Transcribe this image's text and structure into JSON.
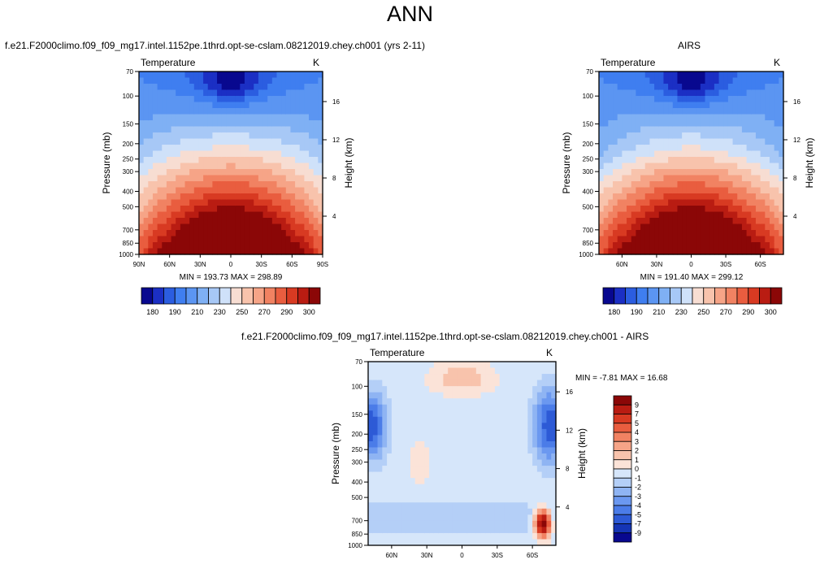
{
  "page": {
    "title": "ANN"
  },
  "panels": [
    {
      "id": "model",
      "case_title": "f.e21.F2000climo.f09_f09_mg17.intel.1152pe.1thrd.opt-se-cslam.08212019.chey.ch001 (yrs 2-11)",
      "variable": "Temperature",
      "units": "K",
      "minmax": "MIN = 193.73  MAX = 298.89",
      "ylabel_left": "Pressure (mb)",
      "ylabel_right": "Height (km)",
      "x_ticks": [
        "90N",
        "60N",
        "30N",
        "0",
        "30S",
        "60S",
        "90S"
      ],
      "pressure_ticks": [
        "70",
        "100",
        "150",
        "200",
        "250",
        "300",
        "400",
        "500",
        "700",
        "850",
        "1000"
      ],
      "height_ticks": [
        "16",
        "12",
        "8",
        "4"
      ]
    },
    {
      "id": "obs",
      "case_title": "AIRS",
      "variable": "Temperature",
      "units": "K",
      "minmax": "MIN = 191.40  MAX = 299.12",
      "ylabel_left": "Pressure (mb)",
      "ylabel_right": "Height (km)",
      "x_ticks": [
        "60N",
        "30N",
        "0",
        "30S",
        "60S"
      ],
      "pressure_ticks": [
        "70",
        "100",
        "150",
        "200",
        "250",
        "300",
        "400",
        "500",
        "700",
        "850",
        "1000"
      ],
      "height_ticks": [
        "16",
        "12",
        "8",
        "4"
      ]
    },
    {
      "id": "diff",
      "case_title": "f.e21.F2000climo.f09_f09_mg17.intel.1152pe.1thrd.opt-se-cslam.08212019.chey.ch001 - AIRS",
      "variable": "Temperature",
      "units": "K",
      "minmax": "MIN =  -7.81  MAX =  16.68",
      "ylabel_left": "Pressure (mb)",
      "ylabel_right": "Height (km)",
      "x_ticks": [
        "60N",
        "30N",
        "0",
        "30S",
        "60S"
      ],
      "pressure_ticks": [
        "70",
        "100",
        "150",
        "200",
        "250",
        "300",
        "400",
        "500",
        "700",
        "850",
        "1000"
      ],
      "height_ticks": [
        "16",
        "12",
        "8",
        "4"
      ]
    }
  ],
  "colorbar_abs": {
    "labels": [
      "180",
      "190",
      "210",
      "230",
      "250",
      "270",
      "290",
      "300"
    ],
    "colors": [
      "#08088f",
      "#1b2fc4",
      "#2b5de0",
      "#3f7ef0",
      "#5b95f2",
      "#7fb0f4",
      "#a7c8f6",
      "#cfe1f9",
      "#f7ddd2",
      "#f8c3ac",
      "#f6a487",
      "#f18262",
      "#e95d3f",
      "#d83a22",
      "#b91c12",
      "#8b0707"
    ]
  },
  "colorbar_diff": {
    "labels": [
      "9",
      "7",
      "5",
      "4",
      "3",
      "2",
      "1",
      "0",
      "-1",
      "-2",
      "-3",
      "-4",
      "-5",
      "-7",
      "-9"
    ],
    "colors": [
      "#8b0707",
      "#b91c12",
      "#d83a22",
      "#e95d3f",
      "#f18262",
      "#f6a487",
      "#f8c3ac",
      "#fbe3d8",
      "#d6e6fa",
      "#b4cff7",
      "#8fb4f3",
      "#6b98f0",
      "#4b7ce8",
      "#2d5ad6",
      "#1535b5",
      "#08088f"
    ]
  },
  "chart_data": [
    {
      "type": "heatmap",
      "title": "Temperature",
      "xlabel": "",
      "ylabel": "Pressure (mb)",
      "x": [
        "90N",
        "60N",
        "30N",
        "0",
        "30S",
        "60S",
        "90S"
      ],
      "y": [
        70,
        100,
        150,
        200,
        250,
        300,
        400,
        500,
        700,
        850,
        1000
      ],
      "min": 193.73,
      "max": 298.89,
      "units": "K",
      "zonal_mean_approx": [
        [
          210,
          208,
          205,
          195,
          205,
          208,
          210
        ],
        [
          212,
          210,
          206,
          196,
          206,
          210,
          210
        ],
        [
          212,
          212,
          208,
          202,
          208,
          212,
          210
        ],
        [
          215,
          214,
          212,
          210,
          212,
          214,
          212
        ],
        [
          220,
          222,
          224,
          224,
          224,
          222,
          218
        ],
        [
          225,
          230,
          234,
          236,
          234,
          230,
          222
        ],
        [
          235,
          245,
          252,
          255,
          252,
          245,
          232
        ],
        [
          242,
          255,
          262,
          266,
          262,
          255,
          240
        ],
        [
          255,
          270,
          280,
          284,
          280,
          270,
          248
        ],
        [
          262,
          278,
          288,
          292,
          288,
          278,
          252
        ],
        [
          268,
          284,
          295,
          298,
          295,
          284,
          258
        ]
      ]
    },
    {
      "type": "heatmap",
      "title": "Temperature",
      "ylabel": "Pressure (mb)",
      "x": [
        "60N",
        "30N",
        "0",
        "30S",
        "60S"
      ],
      "y": [
        70,
        100,
        150,
        200,
        250,
        300,
        400,
        500,
        700,
        850,
        1000
      ],
      "min": 191.4,
      "max": 299.12,
      "units": "K"
    },
    {
      "type": "heatmap",
      "title": "Temperature",
      "ylabel": "Pressure (mb)",
      "x": [
        "60N",
        "30N",
        "0",
        "30S",
        "60S"
      ],
      "y": [
        70,
        100,
        150,
        200,
        250,
        300,
        400,
        500,
        700,
        850,
        1000
      ],
      "min": -7.81,
      "max": 16.68,
      "units": "K"
    }
  ]
}
